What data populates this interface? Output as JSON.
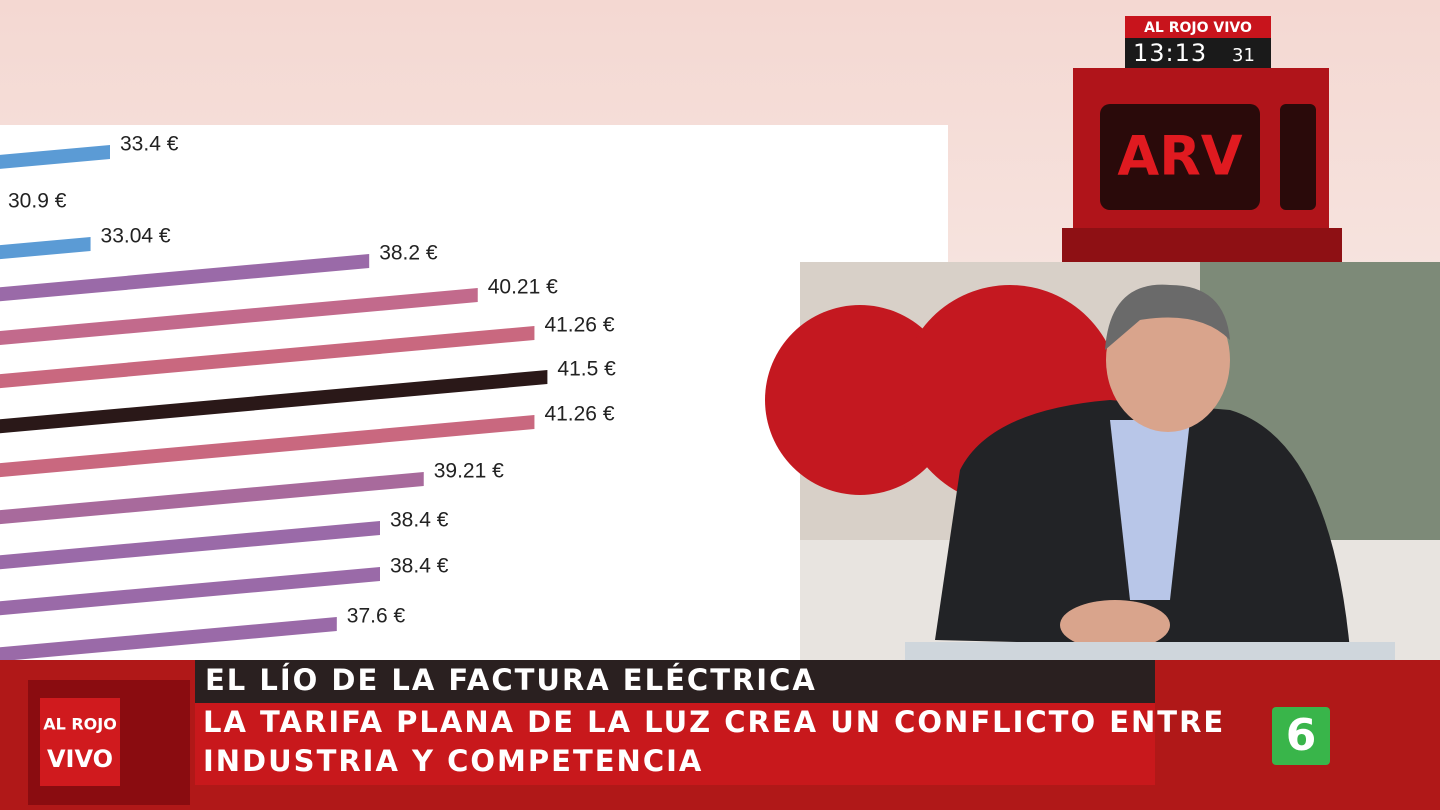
{
  "chart_data": {
    "type": "bar",
    "values": [
      33.4,
      30.9,
      33.04,
      38.2,
      40.21,
      41.26,
      41.5,
      41.26,
      39.21,
      38.4,
      38.4,
      37.6
    ],
    "value_labels": [
      "33.4 €",
      "30.9 €",
      "33.04 €",
      "38.2 €",
      "40.21 €",
      "41.26 €",
      "41.5 €",
      "41.26 €",
      "39.21 €",
      "38.4 €",
      "38.4 €",
      "37.6 €"
    ],
    "colors": [
      "#5b9bd5",
      "#5b9bd5",
      "#5b9bd5",
      "#9a6aa8",
      "#c26a8c",
      "#c9687f",
      "#2a1818",
      "#c9687f",
      "#a86a9c",
      "#9a6aa8",
      "#9a6aa8",
      "#9a6aa8"
    ]
  },
  "overlay": {
    "brand": "AL ROJO VIVO",
    "clock": "13:13",
    "seconds": "31",
    "logo": "ARV",
    "corner_logo": [
      "AL ROJO",
      "VIVO"
    ],
    "headline": "EL LÍO DE LA FACTURA ELÉCTRICA",
    "subheadline": [
      "LA TARIFA PLANA DE LA LUZ CREA UN CONFLICTO ENTRE",
      "INDUSTRIA Y COMPETENCIA"
    ],
    "channel": "6"
  }
}
